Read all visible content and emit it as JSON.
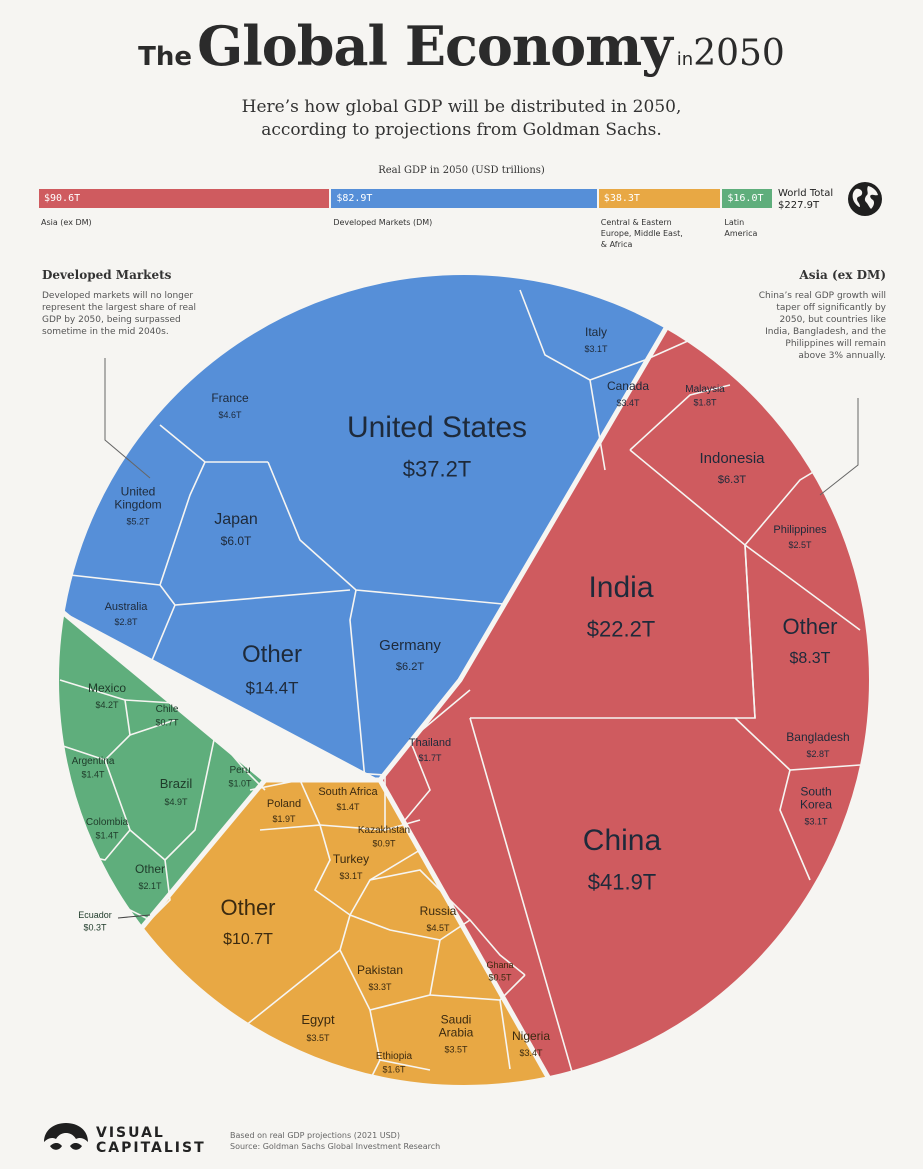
{
  "header": {
    "title_prefix": "The",
    "title_main": "Global Economy",
    "title_in": "in",
    "title_year": "2050",
    "subtitle_line1": "Here’s how global GDP will be distributed in 2050,",
    "subtitle_line2": "according to projections from Goldman Sachs."
  },
  "chart_data": {
    "type": "treemap",
    "unit": "USD trillions",
    "bar": {
      "caption": "Real GDP in 2050 (USD trillions)",
      "segments": [
        {
          "label": "$90.6T",
          "region": "Asia (ex DM)",
          "value": 90.6,
          "color": "#cf5b5f"
        },
        {
          "label": "$82.9T",
          "region": "Developed Markets (DM)",
          "value": 82.9,
          "color": "#568fd8"
        },
        {
          "label": "$38.3T",
          "region_lines": [
            "Central & Eastern",
            "Europe, Middle East,",
            "& Africa"
          ],
          "value": 38.3,
          "color": "#e8a844"
        },
        {
          "label": "$16.0T",
          "region_lines": [
            "Latin",
            "America"
          ],
          "value": 16.0,
          "color": "#5fae7c"
        }
      ],
      "world_total_label": "World Total",
      "world_total_value": "$227.9T"
    },
    "regions": [
      {
        "name": "Developed Markets",
        "color": "#568fd8",
        "items": [
          {
            "name": "United States",
            "label": "$37.2T",
            "value": 37.2
          },
          {
            "name": "Other",
            "label": "$14.4T",
            "value": 14.4
          },
          {
            "name": "Germany",
            "label": "$6.2T",
            "value": 6.2
          },
          {
            "name": "Japan",
            "label": "$6.0T",
            "value": 6.0
          },
          {
            "name": "United Kingdom",
            "label": "$5.2T",
            "value": 5.2
          },
          {
            "name": "France",
            "label": "$4.6T",
            "value": 4.6
          },
          {
            "name": "Canada",
            "label": "$3.4T",
            "value": 3.4
          },
          {
            "name": "Italy",
            "label": "$3.1T",
            "value": 3.1
          },
          {
            "name": "Australia",
            "label": "$2.8T",
            "value": 2.8
          }
        ]
      },
      {
        "name": "Asia (ex DM)",
        "color": "#cf5b5f",
        "items": [
          {
            "name": "China",
            "label": "$41.9T",
            "value": 41.9
          },
          {
            "name": "India",
            "label": "$22.2T",
            "value": 22.2
          },
          {
            "name": "Other",
            "label": "$8.3T",
            "value": 8.3
          },
          {
            "name": "Indonesia",
            "label": "$6.3T",
            "value": 6.3
          },
          {
            "name": "South Korea",
            "label": "$3.1T",
            "value": 3.1
          },
          {
            "name": "Bangladesh",
            "label": "$2.8T",
            "value": 2.8
          },
          {
            "name": "Philippines",
            "label": "$2.5T",
            "value": 2.5
          },
          {
            "name": "Malaysia",
            "label": "$1.8T",
            "value": 1.8
          },
          {
            "name": "Thailand",
            "label": "$1.7T",
            "value": 1.7
          }
        ]
      },
      {
        "name": "Central & Eastern Europe, Middle East, & Africa",
        "color": "#e8a844",
        "items": [
          {
            "name": "Other",
            "label": "$10.7T",
            "value": 10.7
          },
          {
            "name": "Russia",
            "label": "$4.5T",
            "value": 4.5
          },
          {
            "name": "Egypt",
            "label": "$3.5T",
            "value": 3.5
          },
          {
            "name": "Saudi Arabia",
            "label": "$3.5T",
            "value": 3.5
          },
          {
            "name": "Nigeria",
            "label": "$3.4T",
            "value": 3.4
          },
          {
            "name": "Pakistan",
            "label": "$3.3T",
            "value": 3.3
          },
          {
            "name": "Turkey",
            "label": "$3.1T",
            "value": 3.1
          },
          {
            "name": "Poland",
            "label": "$1.9T",
            "value": 1.9
          },
          {
            "name": "Ethiopia",
            "label": "$1.6T",
            "value": 1.6
          },
          {
            "name": "South Africa",
            "label": "$1.4T",
            "value": 1.4
          },
          {
            "name": "Kazakhstan",
            "label": "$0.9T",
            "value": 0.9
          },
          {
            "name": "Ghana",
            "label": "$0.5T",
            "value": 0.5
          }
        ]
      },
      {
        "name": "Latin America",
        "color": "#5fae7c",
        "items": [
          {
            "name": "Brazil",
            "label": "$4.9T",
            "value": 4.9
          },
          {
            "name": "Mexico",
            "label": "$4.2T",
            "value": 4.2
          },
          {
            "name": "Other",
            "label": "$2.1T",
            "value": 2.1
          },
          {
            "name": "Argentina",
            "label": "$1.4T",
            "value": 1.4
          },
          {
            "name": "Colombia",
            "label": "$1.4T",
            "value": 1.4
          },
          {
            "name": "Peru",
            "label": "$1.0T",
            "value": 1.0
          },
          {
            "name": "Chile",
            "label": "$0.7T",
            "value": 0.7
          },
          {
            "name": "Ecuador",
            "label": "$0.3T",
            "value": 0.3
          }
        ]
      }
    ]
  },
  "notes": {
    "dm_head": "Developed Markets",
    "dm_lines": [
      "Developed markets will no longer",
      "represent the largest share of real",
      "GDP by 2050, being surpassed",
      "sometime in the mid 2040s."
    ],
    "asia_head": "Asia (ex DM)",
    "asia_lines": [
      "China’s real GDP growth will",
      "taper off significantly by",
      "2050, but countries like",
      "India, Bangladesh, and the",
      "Philippines will remain",
      "above 3% annually."
    ]
  },
  "footer": {
    "logo_line1": "VISUAL",
    "logo_line2": "CAPITALIST",
    "source_line1": "Based on real GDP projections (2021 USD)",
    "source_line2": "Source: Goldman Sachs Global Investment Research"
  },
  "colors": {
    "dm": "#568fd8",
    "asia": "#cf5b5f",
    "emea": "#e8a844",
    "latam": "#5fae7c"
  }
}
